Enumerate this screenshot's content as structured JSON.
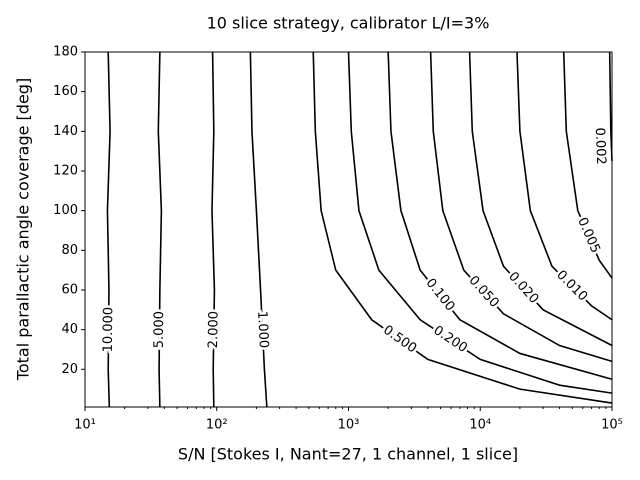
{
  "chart_data": {
    "type": "contour",
    "title": "10 slice strategy, calibrator L/I=3%",
    "x_label": "S/N [Stokes I, Nant=27, 1 channel, 1 slice]",
    "y_label": "Total parallactic angle coverage [deg]",
    "x_scale": "log",
    "xlim": [
      10,
      100000
    ],
    "xticks": [
      {
        "value": 10,
        "label": "10¹"
      },
      {
        "value": 100,
        "label": "10²"
      },
      {
        "value": 1000,
        "label": "10³"
      },
      {
        "value": 10000,
        "label": "10⁴"
      },
      {
        "value": 100000,
        "label": "10⁵"
      }
    ],
    "ylim": [
      1,
      180
    ],
    "yticks": [
      20,
      40,
      60,
      80,
      100,
      120,
      140,
      160,
      180
    ],
    "color": "#000000",
    "series": [
      {
        "name": "10.000",
        "x": [
          15,
          15.5,
          14.8,
          15.2,
          15,
          15.3
        ],
        "y": [
          180,
          140,
          100,
          60,
          20,
          1
        ]
      },
      {
        "name": "5.000",
        "x": [
          37,
          36,
          38,
          37,
          36.5,
          37
        ],
        "y": [
          180,
          140,
          100,
          60,
          20,
          1
        ]
      },
      {
        "name": "2.000",
        "x": [
          93,
          95,
          92,
          96,
          94,
          95
        ],
        "y": [
          180,
          140,
          100,
          60,
          20,
          1
        ]
      },
      {
        "name": "1.000",
        "x": [
          180,
          185,
          200,
          215,
          230,
          240
        ],
        "y": [
          180,
          140,
          100,
          60,
          20,
          1
        ]
      },
      {
        "name": "0.500",
        "x": [
          540,
          560,
          620,
          800,
          1500,
          4000,
          20000,
          100000
        ],
        "y": [
          180,
          140,
          100,
          70,
          45,
          25,
          10,
          3
        ]
      },
      {
        "name": "0.200",
        "x": [
          1000,
          1050,
          1200,
          1700,
          3500,
          10000,
          40000,
          100000
        ],
        "y": [
          180,
          140,
          100,
          70,
          45,
          25,
          12,
          8
        ]
      },
      {
        "name": "0.100",
        "x": [
          2000,
          2100,
          2500,
          3500,
          7000,
          20000,
          100000
        ],
        "y": [
          180,
          140,
          100,
          70,
          45,
          28,
          15
        ]
      },
      {
        "name": "0.050",
        "x": [
          4200,
          4400,
          5200,
          7500,
          15000,
          40000,
          100000
        ],
        "y": [
          180,
          140,
          100,
          70,
          48,
          32,
          24
        ]
      },
      {
        "name": "0.020",
        "x": [
          8300,
          8700,
          10500,
          15000,
          30000,
          100000
        ],
        "y": [
          180,
          140,
          100,
          72,
          50,
          32
        ]
      },
      {
        "name": "0.010",
        "x": [
          19000,
          20000,
          24000,
          35000,
          70000,
          100000
        ],
        "y": [
          180,
          140,
          100,
          72,
          52,
          45
        ]
      },
      {
        "name": "0.005",
        "x": [
          43000,
          45000,
          55000,
          80000,
          100000
        ],
        "y": [
          180,
          140,
          100,
          75,
          66
        ]
      },
      {
        "name": "0.002",
        "x": [
          96000,
          98000,
          100000
        ],
        "y": [
          180,
          140,
          125
        ]
      }
    ]
  }
}
